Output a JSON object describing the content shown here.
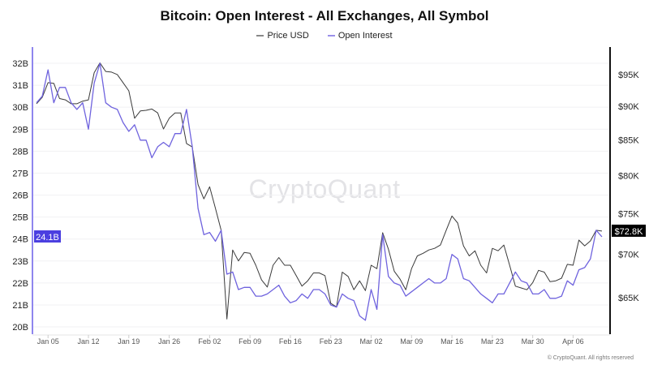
{
  "chart_data": {
    "type": "line",
    "title": "Bitcoin: Open Interest - All Exchanges, All Symbol",
    "legend": [
      "Price USD",
      "Open Interest"
    ],
    "legend_placement": "top-center",
    "x": [
      "Jan 03",
      "Jan 04",
      "Jan 05",
      "Jan 06",
      "Jan 07",
      "Jan 08",
      "Jan 09",
      "Jan 10",
      "Jan 11",
      "Jan 12",
      "Jan 13",
      "Jan 14",
      "Jan 15",
      "Jan 16",
      "Jan 17",
      "Jan 18",
      "Jan 19",
      "Jan 20",
      "Jan 21",
      "Jan 22",
      "Jan 23",
      "Jan 24",
      "Jan 25",
      "Jan 26",
      "Jan 27",
      "Jan 28",
      "Jan 29",
      "Jan 30",
      "Jan 31",
      "Feb 01",
      "Feb 02",
      "Feb 03",
      "Feb 04",
      "Feb 05",
      "Feb 06",
      "Feb 07",
      "Feb 08",
      "Feb 09",
      "Feb 10",
      "Feb 11",
      "Feb 12",
      "Feb 13",
      "Feb 14",
      "Feb 15",
      "Feb 16",
      "Feb 17",
      "Feb 18",
      "Feb 19",
      "Feb 20",
      "Feb 21",
      "Feb 22",
      "Feb 23",
      "Feb 24",
      "Feb 25",
      "Feb 26",
      "Feb 27",
      "Feb 28",
      "Mar 01",
      "Mar 02",
      "Mar 03",
      "Mar 04",
      "Mar 05",
      "Mar 06",
      "Mar 07",
      "Mar 08",
      "Mar 09",
      "Mar 10",
      "Mar 11",
      "Mar 12",
      "Mar 13",
      "Mar 14",
      "Mar 15",
      "Mar 16",
      "Mar 17",
      "Mar 18",
      "Mar 19",
      "Mar 20",
      "Mar 21",
      "Mar 22",
      "Mar 23",
      "Mar 24",
      "Mar 25",
      "Mar 26",
      "Mar 27",
      "Mar 28",
      "Mar 29",
      "Mar 30",
      "Mar 31",
      "Apr 01",
      "Apr 02",
      "Apr 03",
      "Apr 04",
      "Apr 05",
      "Apr 06",
      "Apr 07",
      "Apr 08",
      "Apr 09",
      "Apr 10",
      "Apr 11"
    ],
    "x_ticks": [
      "Jan 05",
      "Jan 12",
      "Jan 19",
      "Jan 26",
      "Feb 02",
      "Feb 09",
      "Feb 16",
      "Feb 23",
      "Mar 02",
      "Mar 09",
      "Mar 16",
      "Mar 23",
      "Mar 30",
      "Apr 06"
    ],
    "series": [
      {
        "name": "Price USD",
        "axis": "right",
        "unit": "K USD",
        "color": "#3a3a3a",
        "values": [
          90.4,
          91.4,
          93.7,
          93.6,
          91.2,
          91.0,
          90.4,
          90.4,
          90.8,
          91.0,
          95.3,
          96.9,
          95.5,
          95.4,
          95.0,
          93.7,
          92.4,
          88.2,
          89.3,
          89.4,
          89.6,
          89.0,
          86.6,
          88.2,
          89.0,
          89.0,
          84.5,
          84.0,
          78.8,
          76.9,
          78.5,
          75.7,
          72.9,
          62.7,
          70.5,
          69.2,
          70.2,
          70.1,
          68.7,
          67.0,
          66.2,
          68.7,
          69.6,
          68.7,
          68.7,
          67.5,
          66.3,
          66.9,
          67.8,
          67.8,
          67.5,
          64.4,
          64.0,
          67.9,
          67.4,
          65.9,
          66.9,
          65.8,
          68.7,
          68.3,
          72.6,
          70.6,
          68.0,
          67.1,
          65.9,
          68.3,
          69.8,
          70.1,
          70.5,
          70.7,
          71.1,
          72.9,
          74.7,
          73.8,
          71.0,
          69.8,
          70.4,
          68.7,
          67.8,
          70.7,
          70.4,
          71.1,
          68.7,
          66.3,
          66.1,
          65.9,
          66.7,
          68.1,
          67.9,
          66.8,
          66.9,
          67.2,
          68.8,
          68.7,
          71.7,
          71.0,
          71.6,
          72.9,
          72.8
        ]
      },
      {
        "name": "Open Interest",
        "axis": "left",
        "unit": "B",
        "color": "#6f63de",
        "values": [
          30.2,
          30.5,
          31.7,
          30.2,
          30.9,
          30.9,
          30.2,
          29.9,
          30.2,
          29.0,
          31.1,
          32.0,
          30.2,
          30.0,
          29.9,
          29.3,
          28.9,
          29.2,
          28.5,
          28.5,
          27.7,
          28.2,
          28.4,
          28.2,
          28.8,
          28.8,
          29.9,
          28.2,
          25.4,
          24.2,
          24.3,
          23.9,
          24.4,
          22.4,
          22.5,
          21.7,
          21.8,
          21.8,
          21.4,
          21.4,
          21.5,
          21.7,
          21.9,
          21.4,
          21.1,
          21.2,
          21.5,
          21.3,
          21.7,
          21.7,
          21.5,
          21.0,
          20.9,
          21.5,
          21.3,
          21.2,
          20.5,
          20.3,
          21.7,
          20.8,
          24.2,
          22.3,
          22.0,
          21.9,
          21.4,
          21.6,
          21.8,
          22.0,
          22.2,
          22.0,
          22.0,
          22.2,
          23.3,
          23.1,
          22.2,
          22.1,
          21.8,
          21.5,
          21.3,
          21.1,
          21.5,
          21.5,
          22.0,
          22.5,
          22.1,
          22.0,
          21.5,
          21.5,
          21.7,
          21.3,
          21.3,
          21.4,
          22.1,
          21.9,
          22.6,
          22.7,
          23.1,
          24.4,
          24.1
        ]
      }
    ],
    "left_axis": {
      "ticks": [
        "20B",
        "21B",
        "22B",
        "23B",
        "24B",
        "25B",
        "26B",
        "27B",
        "28B",
        "29B",
        "30B",
        "31B",
        "32B"
      ],
      "tick_values": [
        20,
        21,
        22,
        23,
        24,
        25,
        26,
        27,
        28,
        29,
        30,
        31,
        32
      ],
      "ylim": [
        19.67,
        32.59
      ],
      "scale": "linear",
      "current_label": "24.1B",
      "current_value": 24.1,
      "color": "#4b3fe0"
    },
    "right_axis": {
      "ticks": [
        "$65K",
        "$70K",
        "$75K",
        "$80K",
        "$85K",
        "$90K",
        "$95K"
      ],
      "tick_values": [
        65,
        70,
        75,
        80,
        85,
        90,
        95
      ],
      "ylim": [
        61.1,
        99.0
      ],
      "scale": "log",
      "current_label": "$72.8K",
      "current_value": 72.8,
      "color": "#000000"
    },
    "grid": "horizontal"
  },
  "watermark": "CryptoQuant",
  "copyright": "© CryptoQuant. All rights reserved"
}
